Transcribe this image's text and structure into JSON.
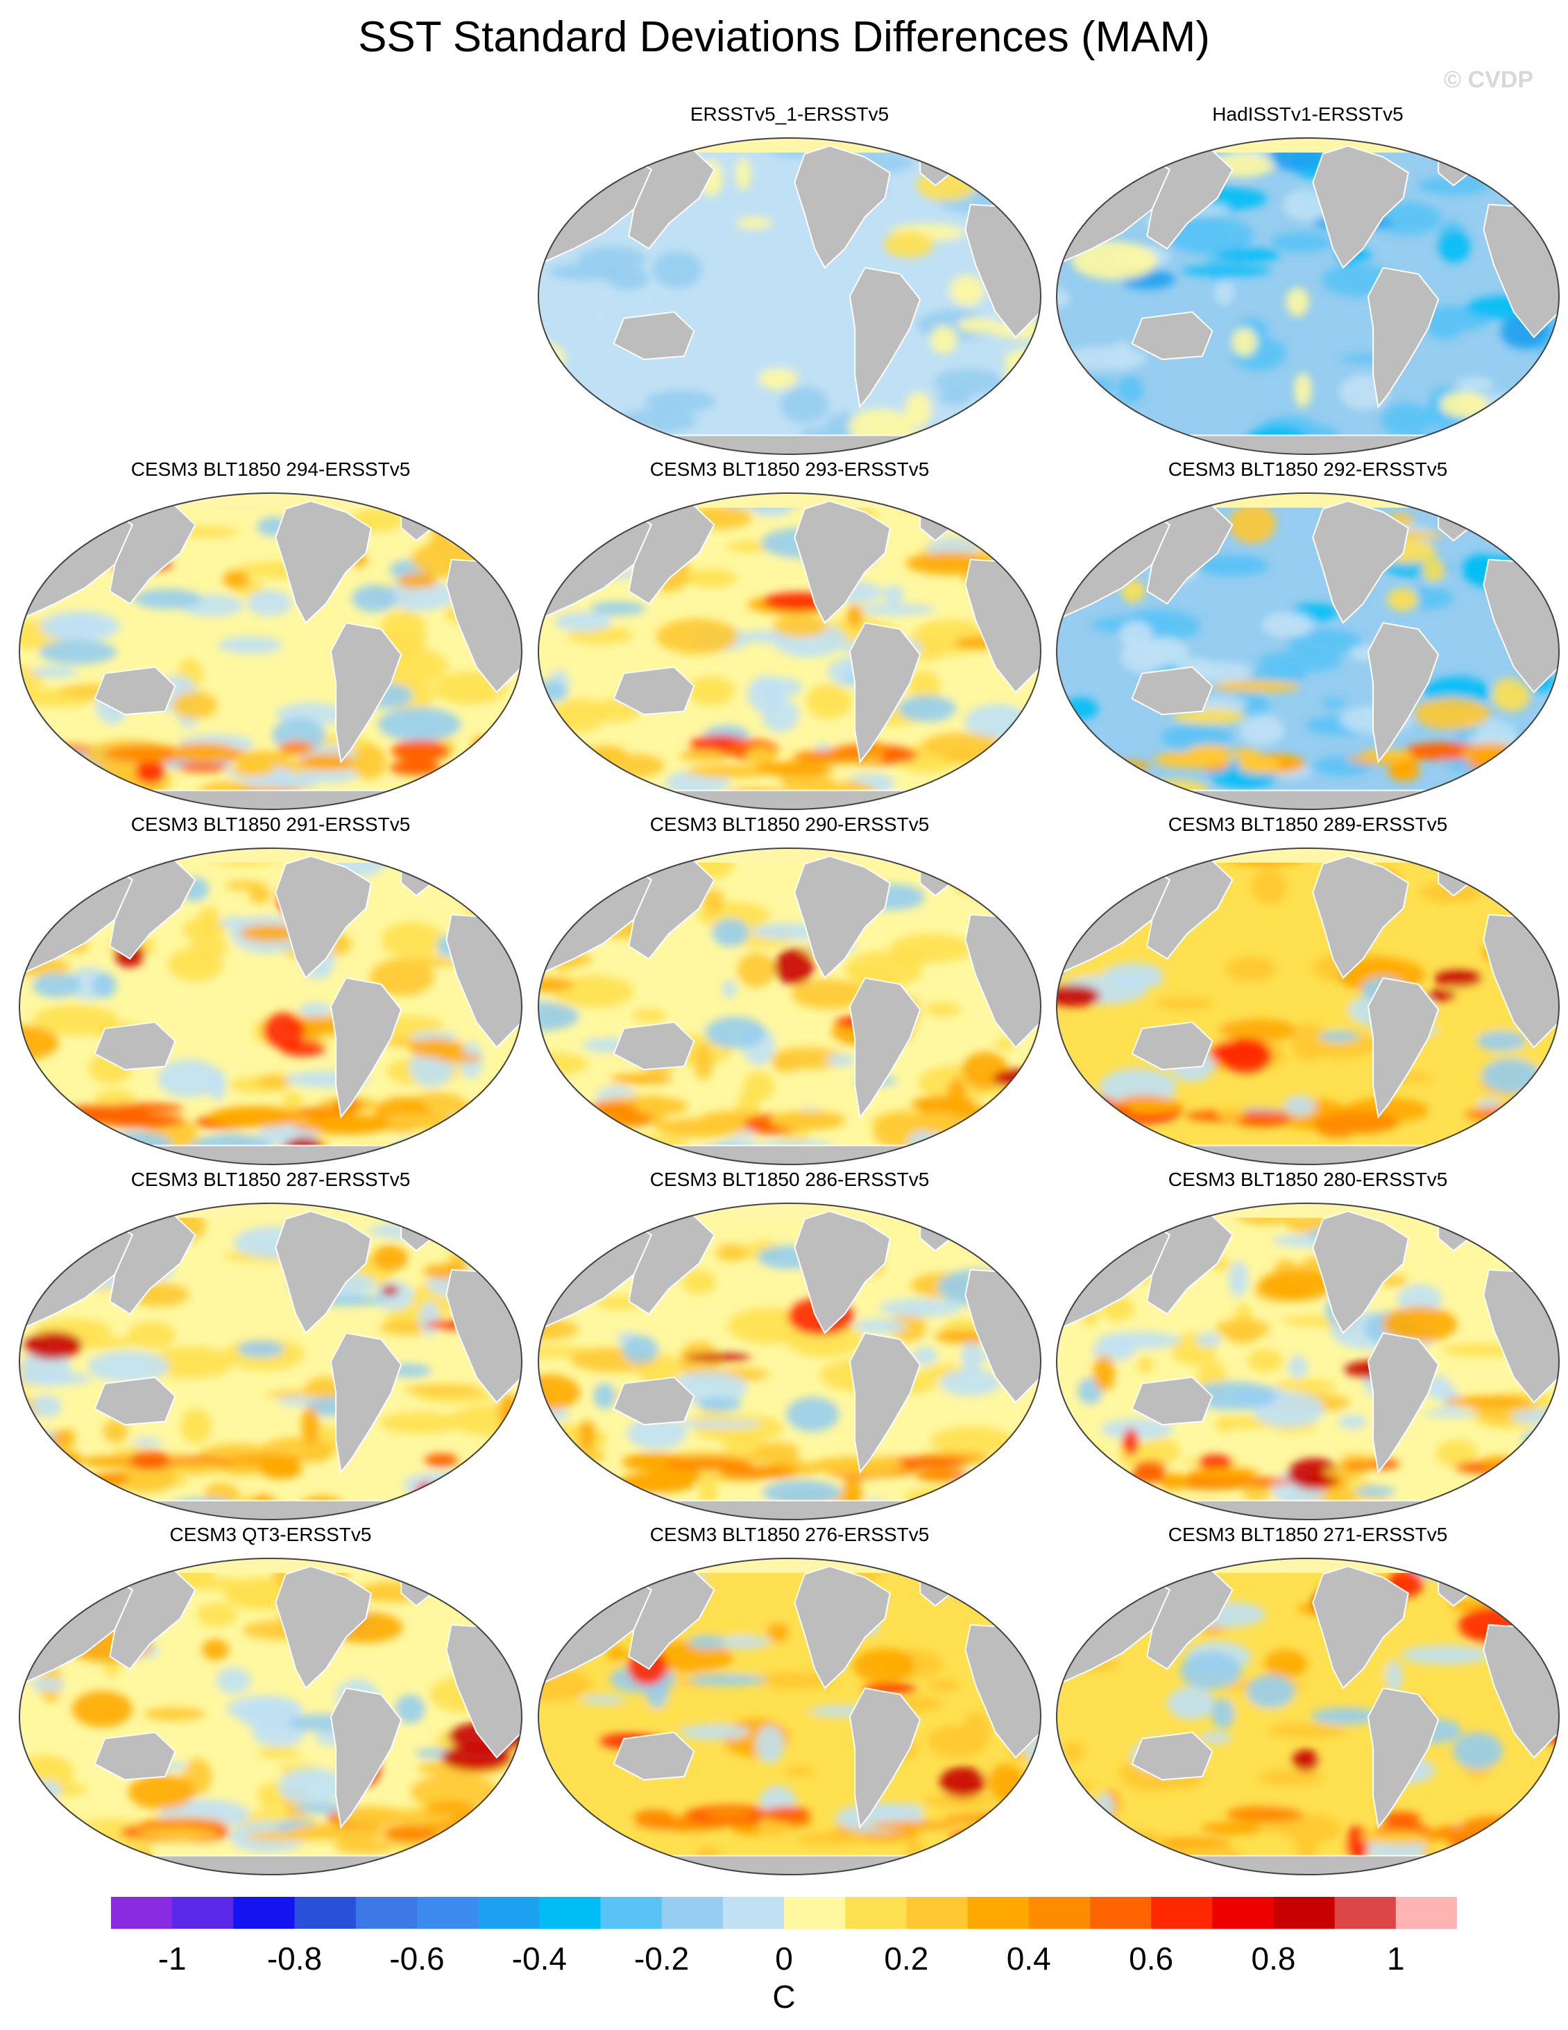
{
  "figure": {
    "title": "SST Standard Deviations Differences (MAM)",
    "credit": "© CVDP"
  },
  "colors": {
    "land": "#bdbdbd",
    "outline": "#444444",
    "neutral_pos": "#fff6a8",
    "neutral_neg": "#c8e4f6"
  },
  "panels": [
    {
      "title": "ERSSTv5_1-ERSSTv5",
      "row": 0,
      "col": 1,
      "pattern": "cool_weak"
    },
    {
      "title": "HadISSTv1-ERSSTv5",
      "row": 0,
      "col": 2,
      "pattern": "cool_strong"
    },
    {
      "title": "CESM3 BLT1850 294-ERSSTv5",
      "row": 1,
      "col": 0,
      "pattern": "mixed"
    },
    {
      "title": "CESM3 BLT1850 293-ERSSTv5",
      "row": 1,
      "col": 1,
      "pattern": "mixed"
    },
    {
      "title": "CESM3 BLT1850 292-ERSSTv5",
      "row": 1,
      "col": 2,
      "pattern": "cool_strong_south_warm"
    },
    {
      "title": "CESM3 BLT1850 291-ERSSTv5",
      "row": 2,
      "col": 0,
      "pattern": "warm"
    },
    {
      "title": "CESM3 BLT1850 290-ERSSTv5",
      "row": 2,
      "col": 1,
      "pattern": "warm"
    },
    {
      "title": "CESM3 BLT1850 289-ERSSTv5",
      "row": 2,
      "col": 2,
      "pattern": "warm_strong"
    },
    {
      "title": "CESM3 BLT1850 287-ERSSTv5",
      "row": 3,
      "col": 0,
      "pattern": "warm"
    },
    {
      "title": "CESM3 BLT1850 286-ERSSTv5",
      "row": 3,
      "col": 1,
      "pattern": "warm"
    },
    {
      "title": "CESM3 BLT1850 280-ERSSTv5",
      "row": 3,
      "col": 2,
      "pattern": "warm"
    },
    {
      "title": "CESM3 QT3-ERSSTv5",
      "row": 4,
      "col": 0,
      "pattern": "warm"
    },
    {
      "title": "CESM3 BLT1850 276-ERSSTv5",
      "row": 4,
      "col": 1,
      "pattern": "warm_strong"
    },
    {
      "title": "CESM3 BLT1850 271-ERSSTv5",
      "row": 4,
      "col": 2,
      "pattern": "warm_strong"
    }
  ],
  "colorbar": {
    "units": "C",
    "boundaries_min": -1.1,
    "boundaries_step": 0.1,
    "colors": [
      "#8a2be2",
      "#5a28e8",
      "#1414f0",
      "#2850d8",
      "#3c78e6",
      "#3c8cf0",
      "#1ea0f0",
      "#00bef5",
      "#5ac3f5",
      "#96cdf0",
      "#c0e1f5",
      "#fff8a0",
      "#ffe050",
      "#ffc832",
      "#ffa800",
      "#ff8c00",
      "#ff6400",
      "#ff2800",
      "#ee0000",
      "#c80000",
      "#dc4646",
      "#ffb4b4"
    ],
    "tick_labels": [
      "-1",
      "-0.8",
      "-0.6",
      "-0.4",
      "-0.2",
      "0",
      "0.2",
      "0.4",
      "0.6",
      "0.8",
      "1"
    ],
    "tick_values": [
      -1,
      -0.8,
      -0.6,
      -0.4,
      -0.2,
      0,
      0.2,
      0.4,
      0.6,
      0.8,
      1
    ]
  }
}
